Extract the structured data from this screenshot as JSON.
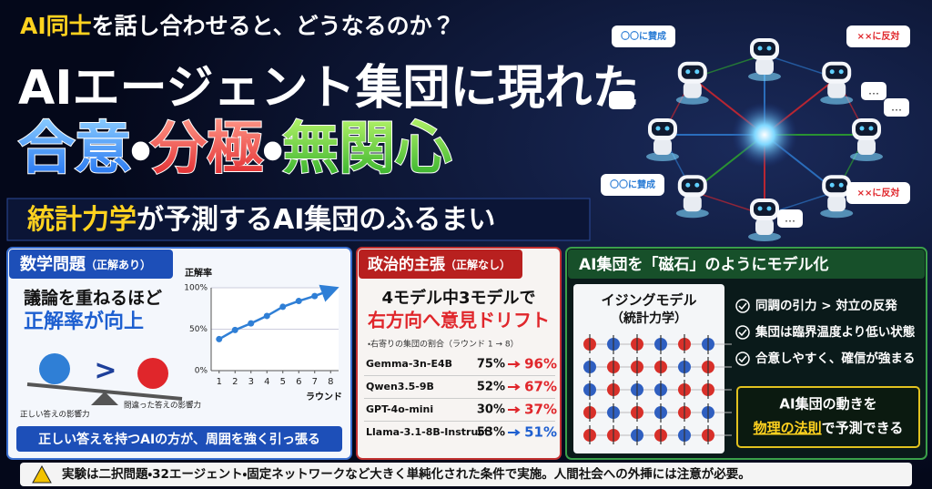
{
  "header": {
    "kicker_highlight": "AI同士",
    "kicker_rest": "を話し合わせると、どうなるのか？",
    "title": "AIエージェント集団に現れた",
    "keywords": [
      "合意",
      "分極",
      "無関心"
    ],
    "separator": "・",
    "subtitle_highlight": "統計力学",
    "subtitle_rest": "が予測するAI集団のふるまい"
  },
  "illustration": {
    "bubbles": [
      "〇〇に賛成",
      "××に反対",
      "〇〇に賛成",
      "××に反対"
    ],
    "ellipsis": "…"
  },
  "panel1": {
    "title": "数学問題",
    "note": "（正解あり）",
    "line1": "議論を重ねるほど",
    "line2": "正解率が向上",
    "compare": ">",
    "left_label": "正しい答えの影響力",
    "right_label": "間違った答えの影響力",
    "footer": "正しい答えを持つAIの方が、周囲を強く引っ張る"
  },
  "chart_data": {
    "type": "line",
    "ylabel": "正解率",
    "xlabel": "ラウンド",
    "x": [
      1,
      2,
      3,
      4,
      5,
      6,
      7,
      8
    ],
    "values": [
      38,
      49,
      57,
      66,
      77,
      84,
      90,
      97
    ],
    "color": "#2f7fd6",
    "xlim": [
      0.5,
      8.5
    ],
    "xticks": [
      1,
      2,
      3,
      4,
      5,
      6,
      7,
      8
    ],
    "ylim": [
      0,
      100
    ],
    "yticks": [
      {
        "value": 0,
        "label": "0%"
      },
      {
        "value": 50,
        "label": "50%"
      },
      {
        "value": 100,
        "label": "100%"
      }
    ],
    "grid": true
  },
  "panel2": {
    "title": "政治的主張",
    "note": "（正解なし）",
    "line1": "4モデル中3モデルで",
    "line2": "右方向へ意見ドリフト",
    "caption": "・右寄りの集団の割合（ラウンド 1 → 8）",
    "rows": [
      {
        "model": "Gemma-3n-E4B",
        "start": "75%",
        "end": "96%",
        "end_color": "#e0262b"
      },
      {
        "model": "Qwen3.5-9B",
        "start": "52%",
        "end": "67%",
        "end_color": "#e0262b"
      },
      {
        "model": "GPT-4o-mini",
        "start": "30%",
        "end": "37%",
        "end_color": "#e0262b"
      },
      {
        "model": "Llama-3.1-8B-Instruct",
        "start": "53%",
        "end": "51%",
        "end_color": "#1f5fd0"
      }
    ]
  },
  "panel3": {
    "title": "AI集団を「磁石」のようにモデル化",
    "model": "イジングモデル",
    "model_note": "（統計力学）",
    "bullets": [
      "同調の引力 > 対立の反発",
      "集団は臨界温度より低い状態",
      "合意しやすく、確信が強まる"
    ],
    "box_line1": "AI集団の動きを",
    "box_highlight": "物理の法則",
    "box_rest": "で予測できる"
  },
  "footer": {
    "text": "実験は二択問題・32エージェント・固定ネットワークなど大きく単純化された条件で実施。人間社会への外挿には注意が必要。"
  }
}
